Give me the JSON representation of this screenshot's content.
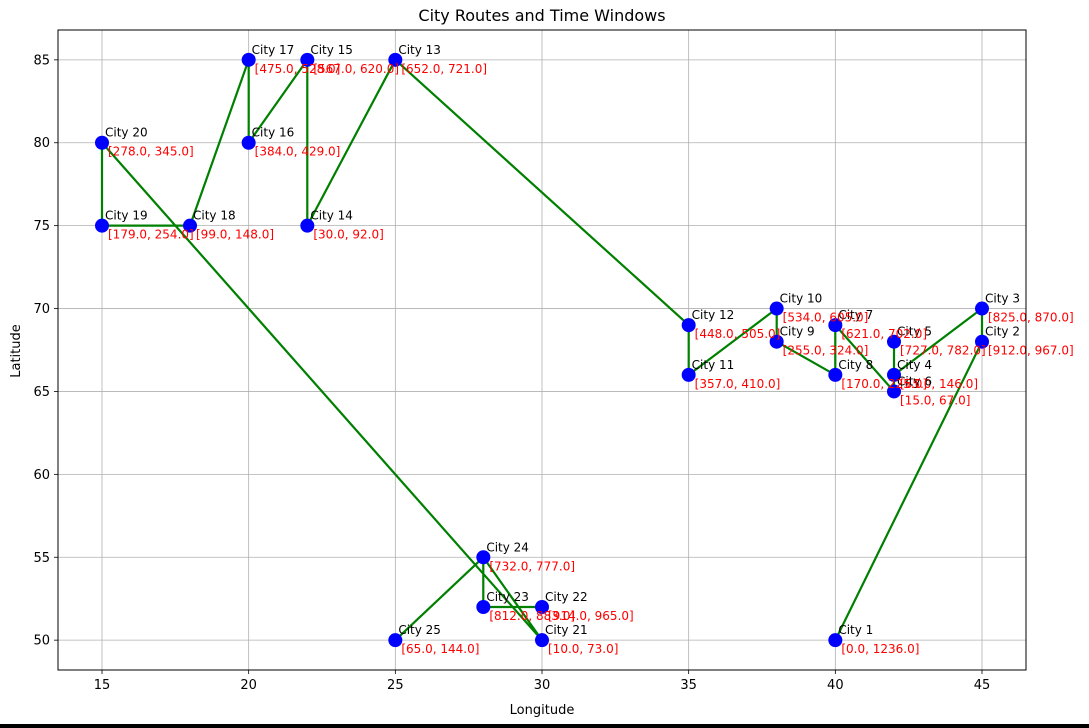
{
  "chart_data": {
    "type": "scatter",
    "title": "City Routes and Time Windows",
    "xlabel": "Longitude",
    "ylabel": "Latitude",
    "xlim": [
      13.5,
      46.5
    ],
    "ylim": [
      48.2,
      86.8
    ],
    "xticks": [
      15,
      20,
      25,
      30,
      35,
      40,
      45
    ],
    "yticks": [
      50,
      55,
      60,
      65,
      70,
      75,
      80,
      85
    ],
    "grid": true,
    "marker_color": "#0000ff",
    "route_color": "#008000",
    "window_label_color": "#ff0000",
    "cities": [
      {
        "name": "City 1",
        "x": 40,
        "y": 50,
        "window": "[0.0, 1236.0]"
      },
      {
        "name": "City 2",
        "x": 45,
        "y": 68,
        "window": "[912.0, 967.0]"
      },
      {
        "name": "City 3",
        "x": 45,
        "y": 70,
        "window": "[825.0, 870.0]"
      },
      {
        "name": "City 4",
        "x": 42,
        "y": 66,
        "window": "[65.0, 146.0]"
      },
      {
        "name": "City 5",
        "x": 42,
        "y": 68,
        "window": "[727.0, 782.0]"
      },
      {
        "name": "City 6",
        "x": 42,
        "y": 65,
        "window": "[15.0, 67.0]"
      },
      {
        "name": "City 7",
        "x": 40,
        "y": 69,
        "window": "[621.0, 702.0]"
      },
      {
        "name": "City 8",
        "x": 40,
        "y": 66,
        "window": "[170.0, 225.0]"
      },
      {
        "name": "City 9",
        "x": 38,
        "y": 68,
        "window": "[255.0, 324.0]"
      },
      {
        "name": "City 10",
        "x": 38,
        "y": 70,
        "window": "[534.0, 605.0]"
      },
      {
        "name": "City 11",
        "x": 35,
        "y": 66,
        "window": "[357.0, 410.0]"
      },
      {
        "name": "City 12",
        "x": 35,
        "y": 69,
        "window": "[448.0, 505.0]"
      },
      {
        "name": "City 13",
        "x": 25,
        "y": 85,
        "window": "[652.0, 721.0]"
      },
      {
        "name": "City 14",
        "x": 22,
        "y": 75,
        "window": "[30.0, 92.0]"
      },
      {
        "name": "City 15",
        "x": 22,
        "y": 85,
        "window": "[567.0, 620.0]"
      },
      {
        "name": "City 16",
        "x": 20,
        "y": 80,
        "window": "[384.0, 429.0]"
      },
      {
        "name": "City 17",
        "x": 20,
        "y": 85,
        "window": "[475.0, 528.0]"
      },
      {
        "name": "City 18",
        "x": 18,
        "y": 75,
        "window": "[99.0, 148.0]"
      },
      {
        "name": "City 19",
        "x": 15,
        "y": 75,
        "window": "[179.0, 254.0]"
      },
      {
        "name": "City 20",
        "x": 15,
        "y": 80,
        "window": "[278.0, 345.0]"
      },
      {
        "name": "City 21",
        "x": 30,
        "y": 50,
        "window": "[10.0, 73.0]"
      },
      {
        "name": "City 22",
        "x": 30,
        "y": 52,
        "window": "[914.0, 965.0]"
      },
      {
        "name": "City 23",
        "x": 28,
        "y": 52,
        "window": "[812.0, 883.0]"
      },
      {
        "name": "City 24",
        "x": 28,
        "y": 55,
        "window": "[732.0, 777.0]"
      },
      {
        "name": "City 25",
        "x": 25,
        "y": 50,
        "window": "[65.0, 144.0]"
      }
    ],
    "routes": [
      [
        [
          40,
          50
        ],
        [
          45,
          68
        ],
        [
          45,
          70
        ],
        [
          42,
          66
        ],
        [
          42,
          68
        ],
        [
          42,
          65
        ],
        [
          40,
          69
        ],
        [
          40,
          66
        ],
        [
          38,
          68
        ],
        [
          38,
          70
        ],
        [
          35,
          66
        ],
        [
          35,
          69
        ],
        [
          25,
          85
        ],
        [
          22,
          75
        ],
        [
          22,
          85
        ],
        [
          20,
          80
        ],
        [
          20,
          85
        ],
        [
          18,
          75
        ],
        [
          15,
          75
        ],
        [
          15,
          80
        ],
        [
          30,
          50
        ],
        [
          28,
          55
        ],
        [
          28,
          52
        ],
        [
          30,
          52
        ]
      ],
      [
        [
          25,
          50
        ],
        [
          28,
          55
        ]
      ]
    ]
  }
}
